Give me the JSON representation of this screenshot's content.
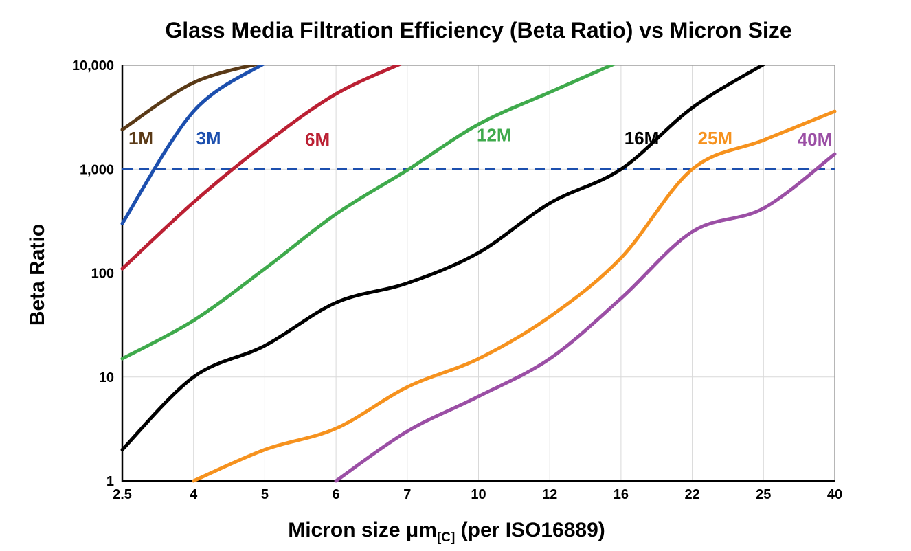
{
  "chart_data": {
    "type": "line",
    "title": "Glass Media Filtration Efficiency (Beta Ratio) vs Micron Size",
    "ylabel": "Beta Ratio",
    "xlabel": "Micron size μm[C] (per ISO16889)",
    "xlabel_parts": {
      "pre": "Micron size μm",
      "sub": "[C]",
      "post": " (per ISO16889)"
    },
    "x_scale": "point",
    "y_scale": "log10",
    "ylim": [
      1,
      10000
    ],
    "grid": true,
    "categories": [
      "2.5",
      "4",
      "5",
      "6",
      "7",
      "10",
      "12",
      "16",
      "22",
      "25",
      "40"
    ],
    "y_ticks": [
      {
        "value": 10000,
        "label": "10,000"
      },
      {
        "value": 1000,
        "label": "1,000"
      },
      {
        "value": 100,
        "label": "100"
      },
      {
        "value": 10,
        "label": "10"
      },
      {
        "value": 1,
        "label": "1"
      }
    ],
    "reference_line": {
      "value": 1000,
      "style": "dashed",
      "color": "#1c4fae"
    },
    "colors": {
      "grid": "#d9d9d9",
      "border": "#9e9e9e",
      "axis": "#000000",
      "background": "#ffffff"
    },
    "series": [
      {
        "name": "1M",
        "color": "#5a3a17",
        "values": [
          2400,
          6800,
          10700,
          null,
          null,
          null,
          null,
          null,
          null,
          null,
          null
        ],
        "label": {
          "xf": 0.026,
          "yf": 0.19
        }
      },
      {
        "name": "3M",
        "color": "#1c4fae",
        "values": [
          300,
          3600,
          10500,
          null,
          null,
          null,
          null,
          null,
          null,
          null,
          null
        ],
        "label": {
          "xf": 0.121,
          "yf": 0.19
        }
      },
      {
        "name": "6M",
        "color": "#bb2033",
        "values": [
          110,
          480,
          1750,
          5300,
          11000,
          null,
          null,
          null,
          null,
          null,
          null
        ],
        "label": {
          "xf": 0.274,
          "yf": 0.193
        }
      },
      {
        "name": "12M",
        "color": "#3faa4c",
        "values": [
          15,
          35,
          110,
          370,
          980,
          2700,
          5500,
          11000,
          null,
          null,
          null
        ],
        "label": {
          "xf": 0.522,
          "yf": 0.183
        }
      },
      {
        "name": "16M",
        "color": "#000000",
        "values": [
          2,
          10,
          20,
          52,
          80,
          157,
          470,
          1000,
          3900,
          10200,
          null
        ],
        "label": {
          "xf": 0.729,
          "yf": 0.19
        }
      },
      {
        "name": "25M",
        "color": "#f6921e",
        "values": [
          null,
          1,
          2,
          3.2,
          8,
          15,
          38,
          140,
          1000,
          1900,
          3600
        ],
        "label": {
          "xf": 0.832,
          "yf": 0.19
        }
      },
      {
        "name": "40M",
        "color": "#9b4fa5",
        "values": [
          null,
          null,
          null,
          1,
          3,
          6.5,
          15,
          57,
          250,
          420,
          1400
        ],
        "label": {
          "xf": 0.972,
          "yf": 0.193
        }
      }
    ]
  }
}
